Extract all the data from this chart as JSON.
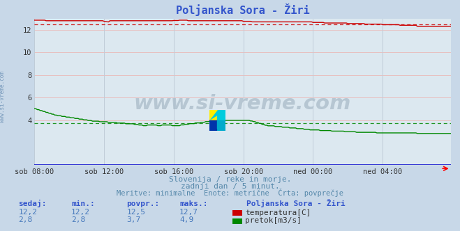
{
  "title": "Poljanska Sora - Žiri",
  "bg_color": "#c8d8e8",
  "plot_bg_color": "#dce8f0",
  "grid_color": "#e8c8c8",
  "grid_vcolor": "#c8d0e0",
  "xlim": [
    0,
    287
  ],
  "ylim": [
    0,
    13
  ],
  "yticks": [
    4,
    6,
    8,
    10,
    12
  ],
  "xtick_labels": [
    "sob 08:00",
    "sob 12:00",
    "sob 16:00",
    "sob 20:00",
    "ned 00:00",
    "ned 04:00"
  ],
  "xtick_positions": [
    0,
    48,
    96,
    144,
    192,
    240
  ],
  "temp_color": "#cc0000",
  "flow_color": "#008800",
  "avg_temp": 12.5,
  "avg_flow": 3.7,
  "temp_min": 12.2,
  "temp_max": 12.7,
  "flow_min": 2.8,
  "flow_max": 4.9,
  "temp_current": 12.2,
  "flow_current": 2.8,
  "watermark": "www.si-vreme.com",
  "subtitle1": "Slovenija / reke in morje.",
  "subtitle2": "zadnji dan / 5 minut.",
  "subtitle3": "Meritve: minimalne  Enote: metrične  Črta: povprečje",
  "legend_title": "Poljanska Sora - Žiri",
  "label_temp": "temperatura[C]",
  "label_flow": "pretok[m3/s]",
  "title_color": "#3355cc",
  "bottom_text_color": "#5588aa",
  "legend_label_color": "#3355cc",
  "stat_value_color": "#4477bb",
  "stat_header_color": "#3355cc"
}
